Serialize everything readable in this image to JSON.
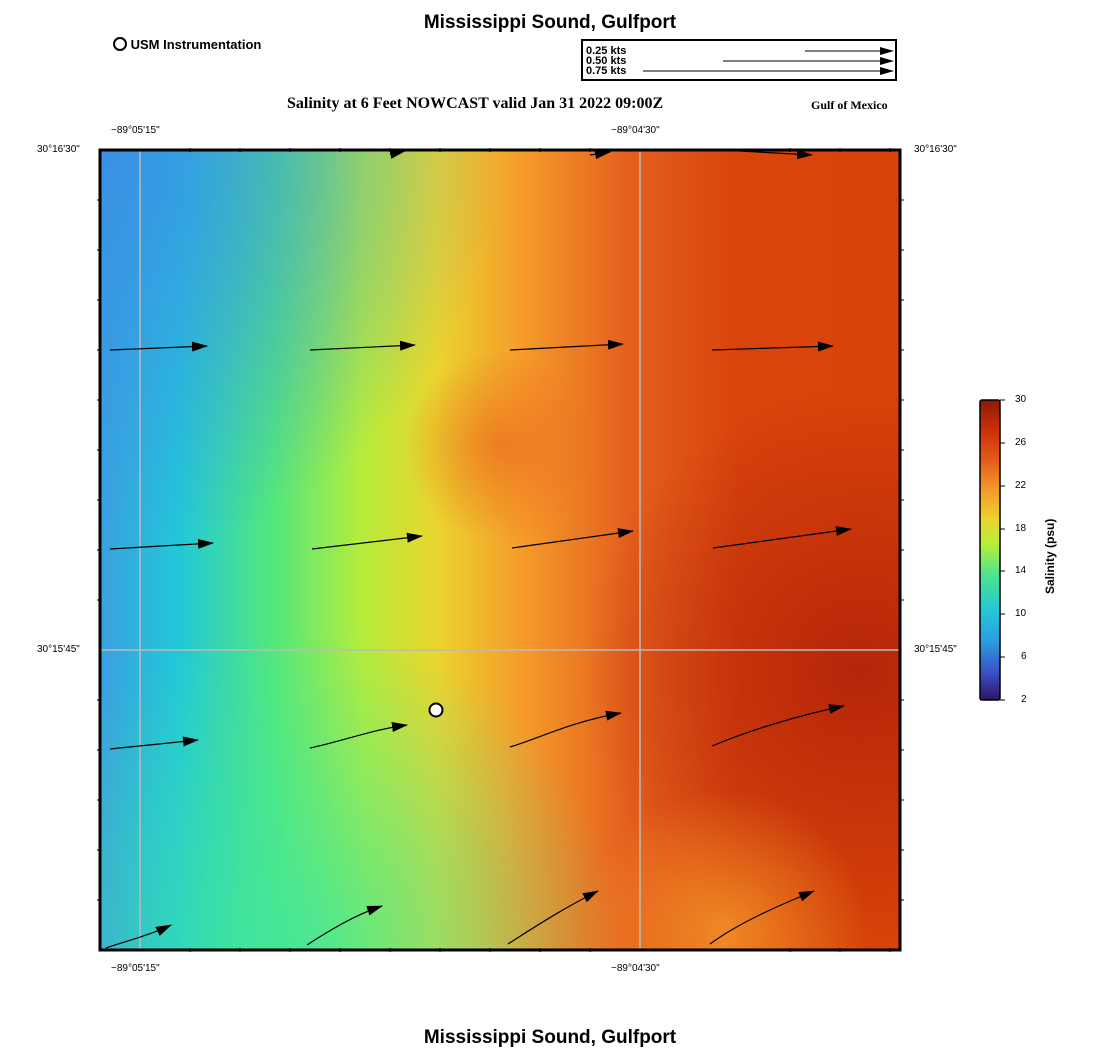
{
  "header": {
    "title": "Mississippi Sound, Gulfport",
    "subtitle": "Salinity at 6 Feet NOWCAST valid Jan 31 2022 09:00Z",
    "region_label": "Gulf of Mexico",
    "footer_title": "Mississippi Sound, Gulfport"
  },
  "legend": {
    "station_label": "USM Instrumentation",
    "vector_scale": [
      {
        "label": "0.25 kts",
        "speed_kts": 0.25
      },
      {
        "label": "0.50 kts",
        "speed_kts": 0.5
      },
      {
        "label": "0.75 kts",
        "speed_kts": 0.75
      }
    ]
  },
  "axes": {
    "lon_ticks_top": [
      "−89°05'15\"",
      "−89°04'30\""
    ],
    "lon_ticks_bottom": [
      "−89°05'15\"",
      "−89°04'30\""
    ],
    "lat_ticks_left": [
      "30°16'30\"",
      "30°15'45\""
    ],
    "lat_ticks_right": [
      "30°16'30\"",
      "30°15'45\""
    ]
  },
  "colorbar": {
    "title": "Salinity (psu)",
    "labels": [
      "30",
      "26",
      "22",
      "18",
      "14",
      "10",
      "6",
      "2"
    ],
    "min": 2,
    "max": 30,
    "colors": [
      "#2a1660",
      "#3a4fc8",
      "#2b9fe0",
      "#22c8d8",
      "#4ee58c",
      "#b8ef3a",
      "#ead52e",
      "#f59a2a",
      "#e45a1c",
      "#cc3008",
      "#8a1a06"
    ]
  },
  "map": {
    "station": {
      "name": "USM Instrumentation",
      "fx": 0.42,
      "fy": 0.7
    },
    "current_vectors_note": "Current arrows indicate eastward to northeastward flow"
  },
  "colors": {
    "background": "#ffffff",
    "grid": "#bbbbbb",
    "frame": "#000000"
  }
}
